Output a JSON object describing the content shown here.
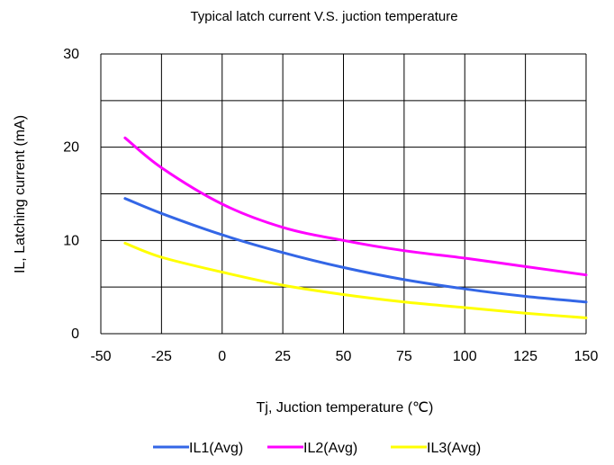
{
  "chart_data": {
    "type": "line",
    "title": "Typical latch current V.S. juction temperature",
    "xlabel": "Tj, Juction temperature (℃)",
    "ylabel": "IL, Latching current (mA)",
    "xlim": [
      -50,
      150
    ],
    "ylim": [
      0,
      30
    ],
    "x_ticks": [
      "-50",
      "-25",
      "0",
      "25",
      "50",
      "75",
      "100",
      "125",
      "150"
    ],
    "y_ticks": [
      "0",
      "10",
      "20",
      "30"
    ],
    "x_gridlines": [
      -50,
      -25,
      0,
      25,
      50,
      75,
      100,
      125,
      150
    ],
    "y_gridlines": [
      0,
      5,
      10,
      15,
      20,
      25,
      30
    ],
    "grid": true,
    "legend_position": "bottom",
    "x": [
      -40,
      -25,
      0,
      25,
      50,
      75,
      100,
      125,
      150
    ],
    "series": [
      {
        "name": "IL1(Avg)",
        "color": "#3366e6",
        "values": [
          14.5,
          12.9,
          10.6,
          8.7,
          7.1,
          5.8,
          4.8,
          4.0,
          3.4
        ]
      },
      {
        "name": "IL2(Avg)",
        "color": "#ff00ff",
        "values": [
          21.0,
          17.8,
          13.9,
          11.4,
          10.0,
          8.9,
          8.1,
          7.2,
          6.3
        ]
      },
      {
        "name": "IL3(Avg)",
        "color": "#ffff00",
        "values": [
          9.7,
          8.2,
          6.6,
          5.2,
          4.2,
          3.4,
          2.8,
          2.2,
          1.7
        ]
      }
    ]
  }
}
